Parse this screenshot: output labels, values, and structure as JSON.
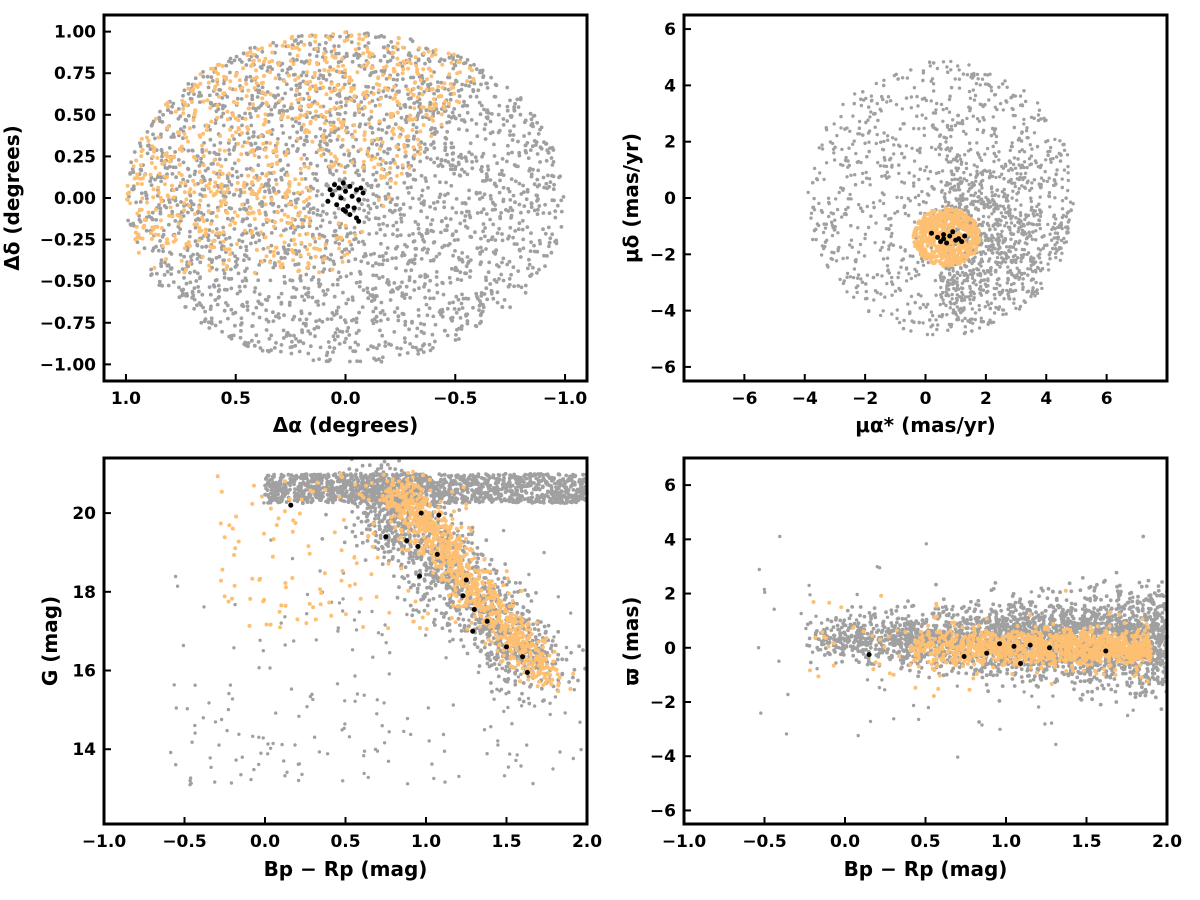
{
  "colors": {
    "field": "#a0a0a0",
    "members": "#fdbf72",
    "cluster_core": "#000000",
    "frame": "#000000"
  },
  "chart_data": [
    {
      "type": "scatter",
      "panel": "spatial",
      "xlabel": "Δα (degrees)",
      "ylabel": "Δδ (degrees)",
      "xlim": [
        1.1,
        -1.1
      ],
      "ylim": [
        -1.1,
        1.1
      ],
      "xticks": [
        "1.0",
        "0.5",
        "0.0",
        "−0.5",
        "−1.0"
      ],
      "yticks": [
        "1.00",
        "0.75",
        "0.50",
        "0.25",
        "0.00",
        "−0.25",
        "−0.50",
        "−0.75",
        "−1.00"
      ],
      "grid": false,
      "series": [
        {
          "role": "field",
          "color": "#a0a0a0",
          "distribution": "uniform disk",
          "center": [
            0,
            0
          ],
          "radius": 1.0,
          "approx_count": 5500
        },
        {
          "role": "members",
          "color": "#fdbf72",
          "distribution": "concentrated in north-east half",
          "approx_count": 1500,
          "extent": {
            "x": [
              0.98,
              -0.5
            ],
            "y": [
              -0.45,
              1.0
            ]
          }
        },
        {
          "role": "core",
          "color": "#000000",
          "points": [
            [
              0.05,
              0.08
            ],
            [
              0.03,
              0.06
            ],
            [
              0.0,
              0.04
            ],
            [
              -0.02,
              0.07
            ],
            [
              -0.05,
              0.05
            ],
            [
              -0.08,
              0.03
            ],
            [
              0.06,
              0.02
            ],
            [
              0.02,
              0.0
            ],
            [
              -0.03,
              0.01
            ],
            [
              -0.06,
              -0.01
            ],
            [
              0.08,
              -0.02
            ],
            [
              0.04,
              -0.04
            ],
            [
              -0.01,
              -0.05
            ],
            [
              -0.04,
              -0.06
            ],
            [
              0.0,
              -0.08
            ],
            [
              -0.02,
              -0.1
            ],
            [
              -0.05,
              -0.12
            ],
            [
              -0.06,
              -0.14
            ],
            [
              0.01,
              -0.07
            ],
            [
              -0.07,
              0.06
            ],
            [
              0.07,
              0.05
            ],
            [
              0.01,
              0.09
            ]
          ]
        }
      ]
    },
    {
      "type": "scatter",
      "panel": "proper-motion",
      "xlabel": "μα* (mas/yr)",
      "ylabel": "μδ (mas/yr)",
      "xlim": [
        -8,
        8
      ],
      "ylim": [
        -6.5,
        6.5
      ],
      "xticks": [
        "−6",
        "−4",
        "−2",
        "0",
        "2",
        "4",
        "6"
      ],
      "yticks": [
        "6",
        "4",
        "2",
        "0",
        "−2",
        "−4",
        "−6"
      ],
      "grid": false,
      "series": [
        {
          "role": "field",
          "color": "#a0a0a0",
          "distribution": "disk, denser toward lower-right",
          "center": [
            0.5,
            0
          ],
          "radius": 4.9,
          "approx_count": 5000
        },
        {
          "role": "members",
          "color": "#fdbf72",
          "distribution": "compact clump",
          "center": [
            0.7,
            -1.4
          ],
          "radius": 1.1,
          "approx_count": 600
        },
        {
          "role": "core",
          "color": "#000000",
          "points": [
            [
              0.2,
              -1.25
            ],
            [
              1.0,
              -1.5
            ],
            [
              0.6,
              -1.3
            ],
            [
              1.3,
              -1.35
            ],
            [
              0.5,
              -1.55
            ],
            [
              0.9,
              -1.2
            ],
            [
              0.7,
              -1.6
            ],
            [
              1.1,
              -1.45
            ],
            [
              0.4,
              -1.4
            ],
            [
              0.8,
              -1.35
            ],
            [
              1.2,
              -1.55
            ],
            [
              0.6,
              -1.45
            ]
          ]
        }
      ]
    },
    {
      "type": "scatter",
      "panel": "colour-magnitude",
      "xlabel": "Bp − Rp (mag)",
      "ylabel": "G (mag)",
      "xlim": [
        -1.0,
        2.0
      ],
      "ylim": [
        12.1,
        21.4
      ],
      "y_inverted": false,
      "xticks": [
        "−1.0",
        "−0.5",
        "0.0",
        "0.5",
        "1.0",
        "1.5",
        "2.0"
      ],
      "yticks": [
        "20",
        "18",
        "16",
        "14"
      ],
      "grid": false,
      "series": [
        {
          "role": "field",
          "color": "#a0a0a0",
          "distribution": "faint band at G≈20.3-20.9 plus diagonal sequence",
          "approx_count": 5000
        },
        {
          "role": "members",
          "color": "#fdbf72",
          "distribution": "diagonal sequence from (0.7,20.9) to (1.8,15.8)",
          "approx_count": 1500
        },
        {
          "role": "core",
          "color": "#000000",
          "points": [
            [
              0.16,
              20.2
            ],
            [
              0.75,
              19.4
            ],
            [
              0.88,
              19.3
            ],
            [
              0.97,
              20.0
            ],
            [
              1.08,
              19.95
            ],
            [
              0.95,
              19.15
            ],
            [
              1.07,
              18.95
            ],
            [
              1.25,
              18.3
            ],
            [
              0.96,
              18.4
            ],
            [
              1.23,
              17.9
            ],
            [
              1.3,
              17.55
            ],
            [
              1.29,
              17.0
            ],
            [
              1.38,
              17.25
            ],
            [
              1.5,
              16.6
            ],
            [
              1.6,
              16.35
            ],
            [
              1.63,
              15.95
            ]
          ]
        }
      ]
    },
    {
      "type": "scatter",
      "panel": "parallax",
      "xlabel": "Bp − Rp (mag)",
      "ylabel": "ϖ (mas)",
      "xlim": [
        -1.0,
        2.0
      ],
      "ylim": [
        -6.5,
        7.0
      ],
      "xticks": [
        "−1.0",
        "−0.5",
        "0.0",
        "0.5",
        "1.0",
        "1.5",
        "2.0"
      ],
      "yticks": [
        "6",
        "4",
        "2",
        "0",
        "−2",
        "−4",
        "−6"
      ],
      "grid": false,
      "series": [
        {
          "role": "field",
          "color": "#a0a0a0",
          "distribution": "horizontal band around ϖ≈0.3, spread widening to the right",
          "approx_count": 5000
        },
        {
          "role": "members",
          "color": "#fdbf72",
          "distribution": "tight band around ϖ≈0",
          "approx_count": 1500
        },
        {
          "role": "core",
          "color": "#000000",
          "points": [
            [
              0.15,
              -0.25
            ],
            [
              0.74,
              -0.32
            ],
            [
              0.96,
              0.15
            ],
            [
              1.09,
              -0.58
            ],
            [
              1.27,
              0.0
            ],
            [
              1.05,
              0.05
            ],
            [
              1.62,
              -0.12
            ],
            [
              0.88,
              -0.2
            ],
            [
              1.15,
              0.1
            ]
          ]
        }
      ]
    }
  ]
}
